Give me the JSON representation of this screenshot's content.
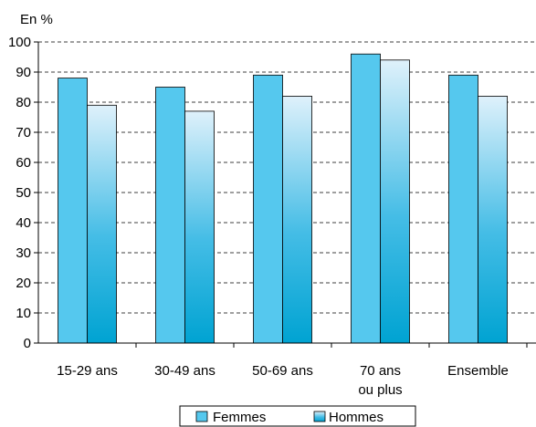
{
  "chart_data": {
    "type": "bar",
    "y_unit_label": "En %",
    "categories": [
      [
        "15-29 ans"
      ],
      [
        "30-49 ans"
      ],
      [
        "50-69 ans"
      ],
      [
        "70 ans",
        "ou plus"
      ],
      [
        "Ensemble"
      ]
    ],
    "series": [
      {
        "name": "Femmes",
        "values": [
          88,
          85,
          89,
          96,
          89
        ],
        "color": "#55c8ee"
      },
      {
        "name": "Hommes",
        "values": [
          79,
          77,
          82,
          94,
          82
        ],
        "color_top": "#dff1fb",
        "color_bottom": "#00a3d2"
      }
    ],
    "ylim": [
      0,
      100
    ],
    "yticks": [
      0,
      10,
      20,
      30,
      40,
      50,
      60,
      70,
      80,
      90,
      100
    ],
    "grid": "horizontal-dashed",
    "legend_position": "bottom-center"
  }
}
